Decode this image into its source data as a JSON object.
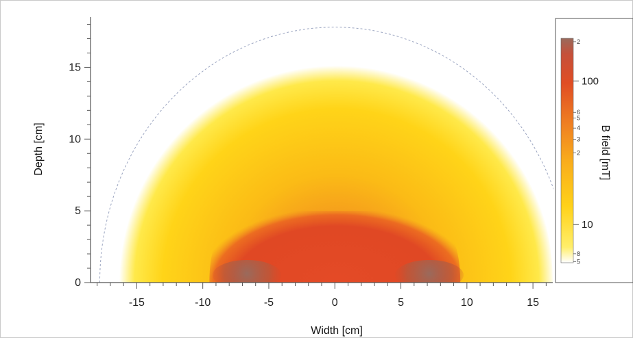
{
  "chart_data": {
    "type": "heatmap",
    "title": "",
    "xlabel": "Width [cm]",
    "ylabel": "Depth [cm]",
    "xlim": [
      -18.5,
      16.5
    ],
    "ylim": [
      0,
      18.5
    ],
    "x_ticks": [
      -15,
      -10,
      -5,
      0,
      5,
      10,
      15
    ],
    "x_tick_labels": [
      "-15",
      "-10",
      "-5",
      "0",
      "5",
      "10",
      "15"
    ],
    "y_ticks": [
      0,
      5,
      10,
      15
    ],
    "y_tick_labels": [
      "0",
      "5",
      "10",
      "15"
    ],
    "field_extent": {
      "outer_radius": 16.5,
      "dashed_boundary_radius": 17.8,
      "core_halfwidth": 9.5,
      "core_depth": 5
    },
    "colorbar": {
      "label": "B field [mT]",
      "scale": "log",
      "major_ticks": [
        10,
        100
      ],
      "major_tick_labels": [
        "10",
        "100"
      ],
      "minor_tick_labels": [
        "2",
        "6",
        "5",
        "4",
        "3",
        "2",
        "8",
        "5"
      ],
      "colors": [
        "#ffffff",
        "#ffe84a",
        "#ffcf12",
        "#f9a91e",
        "#ee7425",
        "#df4a25",
        "#c44a31",
        "#9a6a5c"
      ]
    }
  }
}
